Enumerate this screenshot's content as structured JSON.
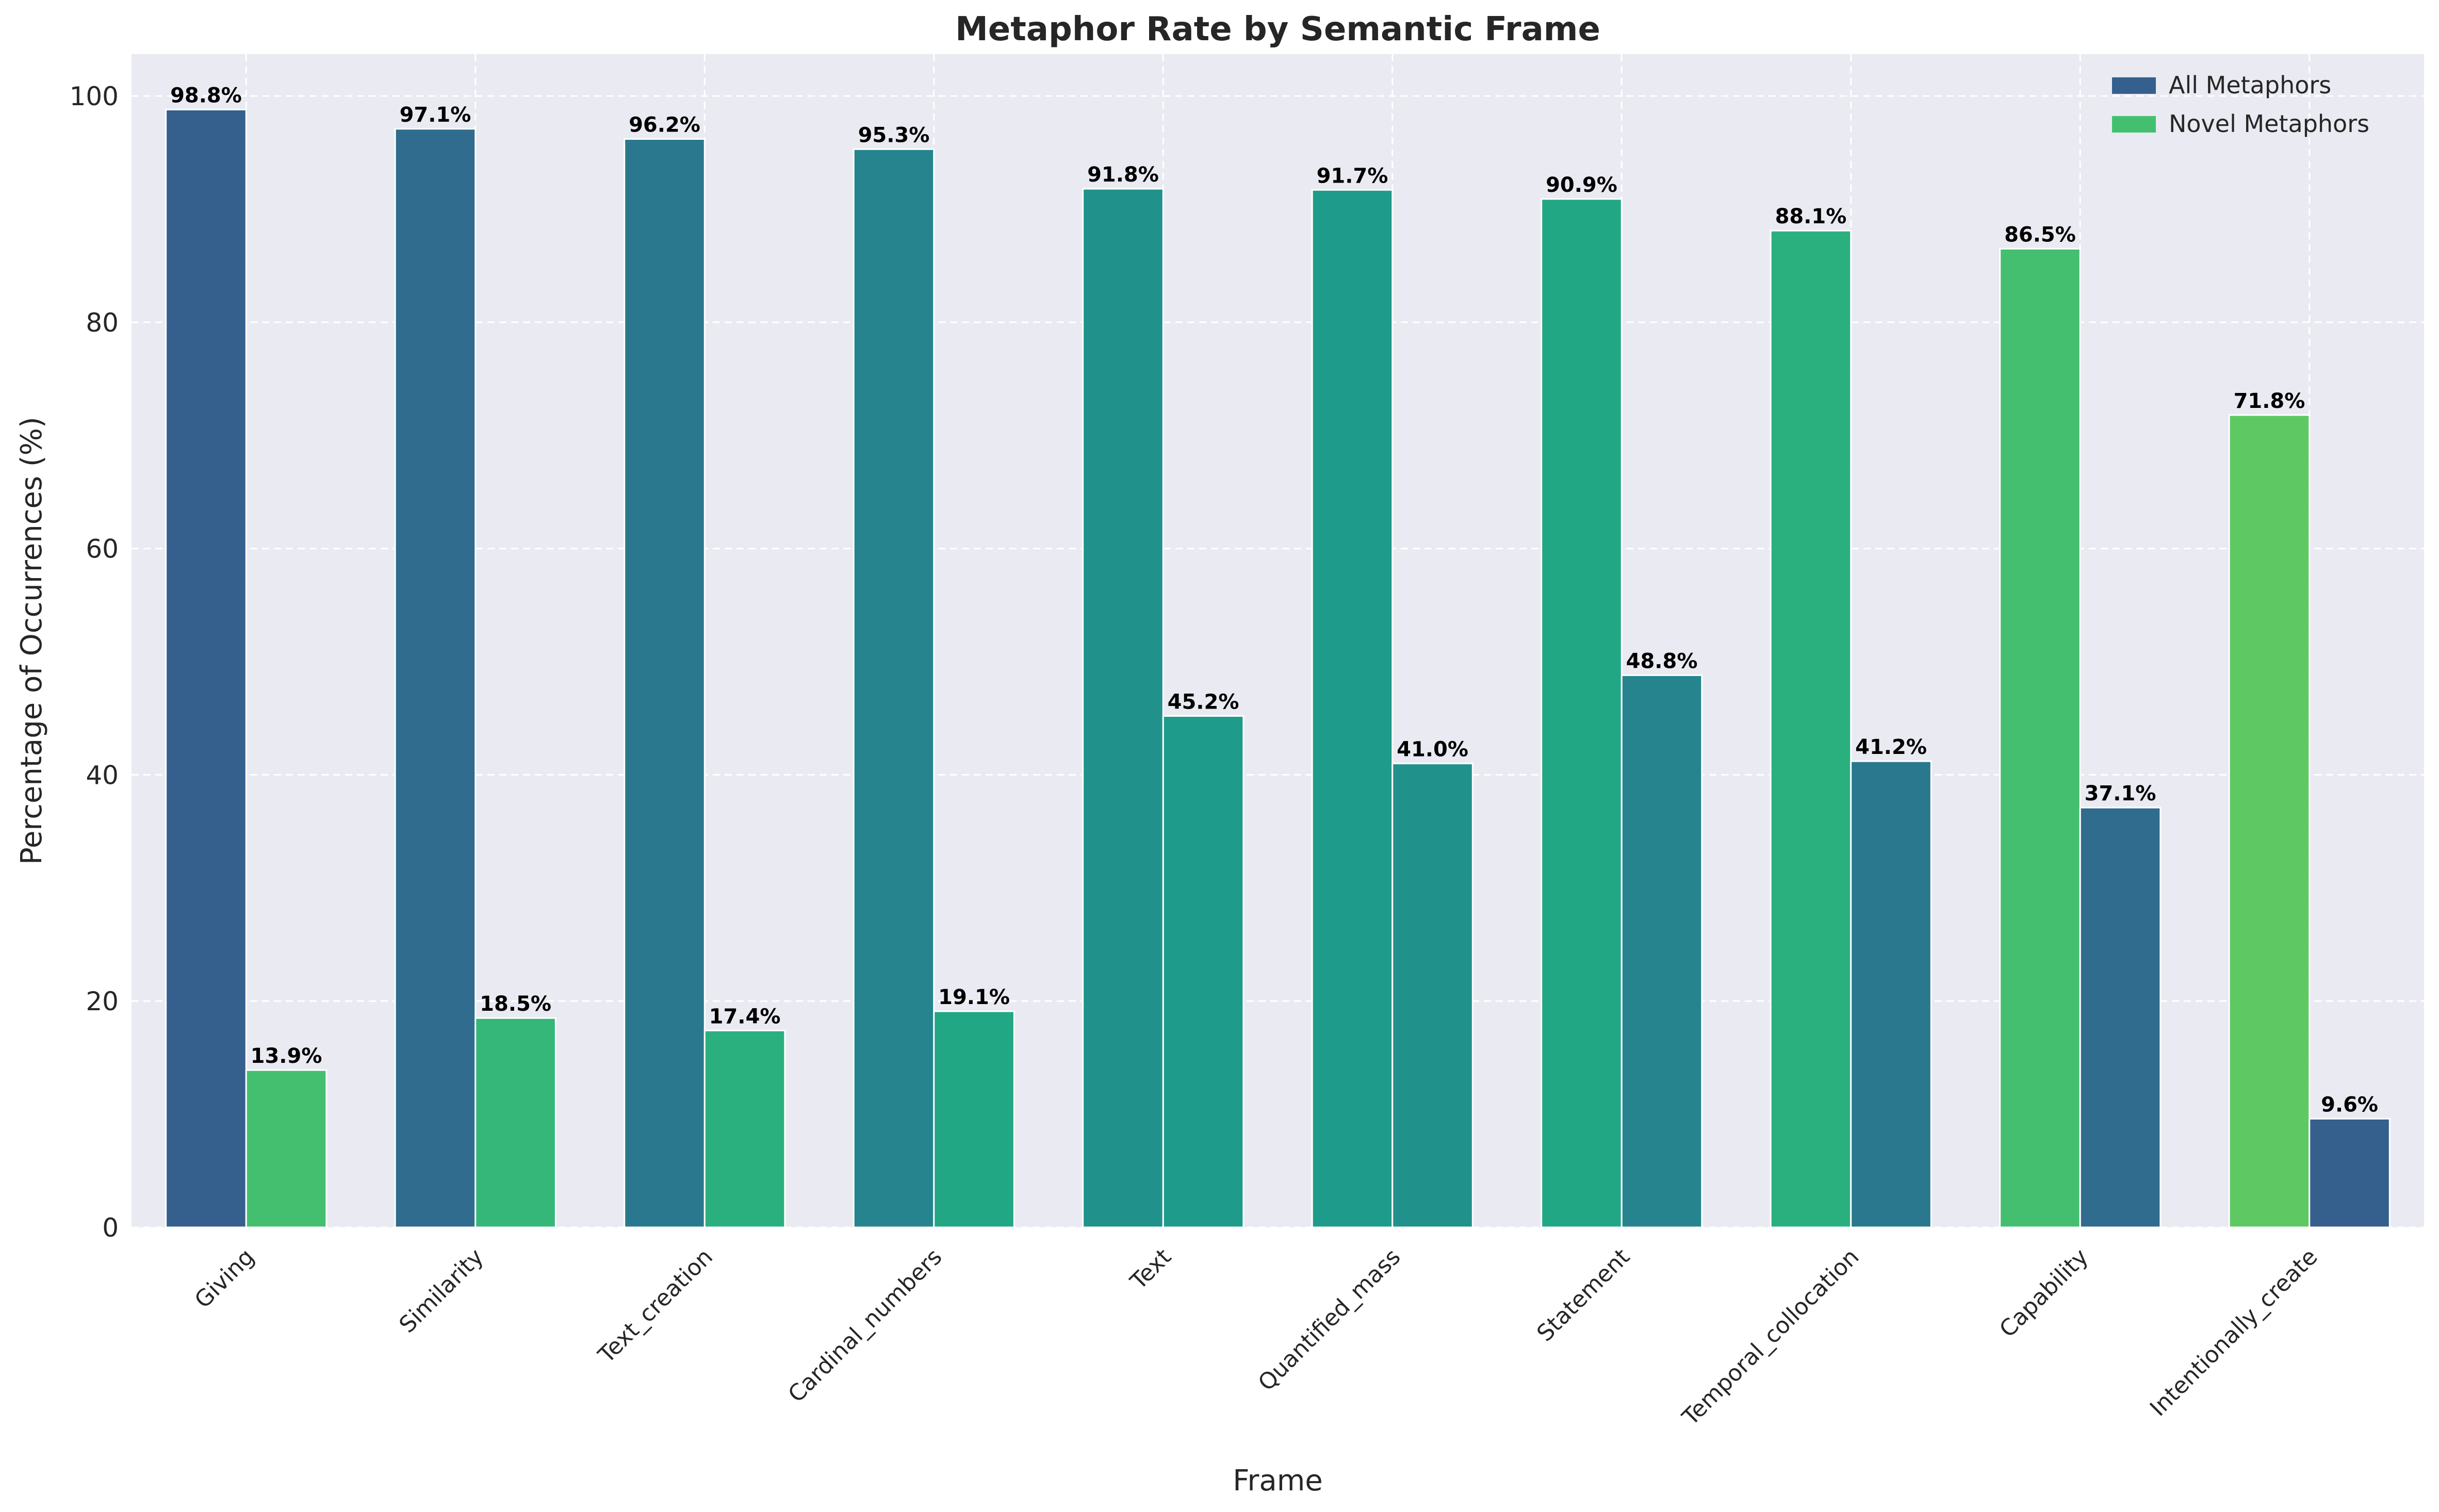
{
  "chart_data": {
    "type": "bar",
    "title": "Metaphor Rate by Semantic Frame",
    "xlabel": "Frame",
    "ylabel": "Percentage of Occurrences (%)",
    "ylim": [
      0,
      103.7
    ],
    "yticks": [
      0,
      20,
      40,
      60,
      80,
      100
    ],
    "grid": true,
    "legend_position": "top-right",
    "categories": [
      "Giving",
      "Similarity",
      "Text_creation",
      "Cardinal_numbers",
      "Text",
      "Quantified_mass",
      "Statement",
      "Temporal_collocation",
      "Capability",
      "Intentionally_create"
    ],
    "series": [
      {
        "name": "All Metaphors",
        "legend_color": "#355f8d",
        "values": [
          98.8,
          97.1,
          96.2,
          95.3,
          91.8,
          91.7,
          90.9,
          88.1,
          86.5,
          71.8
        ],
        "labels": [
          "98.8%",
          "97.1%",
          "96.2%",
          "95.3%",
          "91.8%",
          "91.7%",
          "90.9%",
          "88.1%",
          "86.5%",
          "71.8%"
        ],
        "colors": [
          "#355f8d",
          "#2f6c8e",
          "#2a788e",
          "#25848e",
          "#21918c",
          "#1e9b8a",
          "#22a785",
          "#2ab07f",
          "#44bf70",
          "#5ec962"
        ]
      },
      {
        "name": "Novel Metaphors",
        "legend_color": "#44bf70",
        "values": [
          13.9,
          18.5,
          17.4,
          19.1,
          45.2,
          41.0,
          48.8,
          41.2,
          37.1,
          9.6
        ],
        "labels": [
          "13.9%",
          "18.5%",
          "17.4%",
          "19.1%",
          "45.2%",
          "41.0%",
          "48.8%",
          "41.2%",
          "37.1%",
          "9.6%"
        ],
        "colors": [
          "#44bf70",
          "#35b779",
          "#2ab07f",
          "#22a785",
          "#1e9b8a",
          "#21918c",
          "#25848e",
          "#2a788e",
          "#2f6c8e",
          "#355f8d"
        ]
      }
    ]
  }
}
